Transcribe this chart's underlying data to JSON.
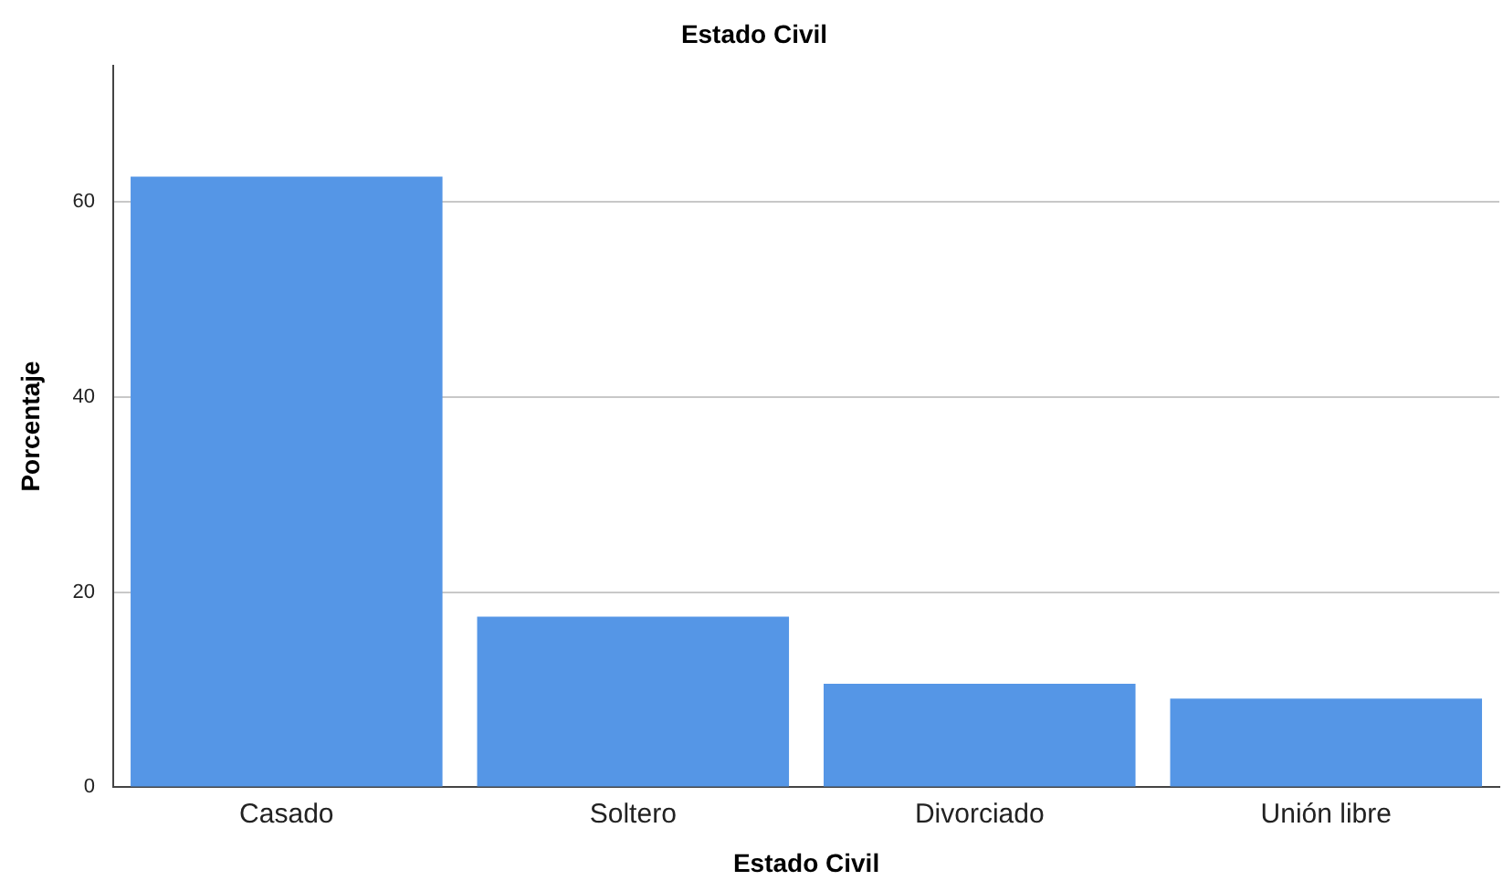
{
  "chart_data": {
    "type": "bar",
    "title": "Estado Civil",
    "xlabel": "Estado Civil",
    "ylabel": "Porcentaje",
    "categories": [
      "Casado",
      "Soltero",
      "Divorciado",
      "Unión libre"
    ],
    "values": [
      62.6,
      17.5,
      10.6,
      9.1
    ],
    "color": "#5596e6",
    "ylim": [
      0,
      74
    ],
    "yticks": [
      0,
      20,
      40,
      60
    ],
    "grid": "y",
    "legend": false
  }
}
